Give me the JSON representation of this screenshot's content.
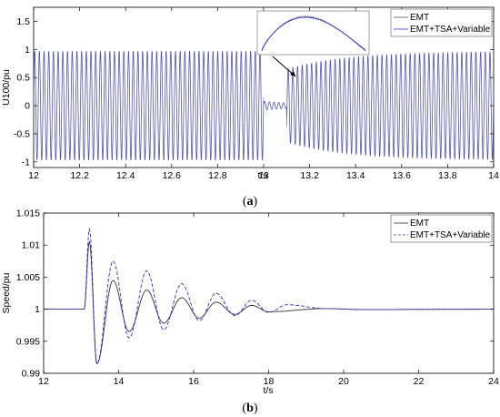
{
  "chart_data": [
    {
      "type": "line",
      "caption": "(a)",
      "xlabel": "t/s",
      "ylabel": "U100/pu",
      "xlim": [
        12,
        14
      ],
      "ylim": [
        -1.1,
        1.75
      ],
      "xticks": [
        "12",
        "12.2",
        "12.4",
        "12.6",
        "12.8",
        "13",
        "13.2",
        "13.4",
        "13.6",
        "13.8",
        "14"
      ],
      "yticks": [
        "-1",
        "-0.5",
        "0",
        "0.5",
        "1",
        "1.5"
      ],
      "legend_position": "top-right",
      "series": [
        {
          "name": "EMT",
          "color": "#555555",
          "description_values": {
            "frequency_hz": 50,
            "amplitude_pre_fault": 0.97,
            "fault_start": 13.0,
            "fault_clear": 13.1,
            "fault_amplitude": 0.08,
            "post_fault_amplitude_start": 0.65,
            "post_fault_amplitude_end": 0.97
          }
        },
        {
          "name": "EMT+TSA+Variable",
          "color": "#3333cc",
          "description_values": {
            "frequency_hz": 50,
            "amplitude_pre_fault": 0.97,
            "fault_start": 13.0,
            "fault_clear": 13.1,
            "fault_amplitude": 0.08,
            "post_fault_amplitude_start": 0.65,
            "post_fault_amplitude_end": 0.97
          }
        }
      ],
      "inset": {
        "description": "zoomed view of one waveform peak"
      }
    },
    {
      "type": "line",
      "caption": "(b)",
      "xlabel": "t/s",
      "ylabel": "Speed/pu",
      "xlim": [
        12,
        24
      ],
      "ylim": [
        0.99,
        1.015
      ],
      "xticks": [
        "12",
        "14",
        "16",
        "18",
        "20",
        "22",
        "24"
      ],
      "yticks": [
        "0.99",
        "0.995",
        "1",
        "1.005",
        "1.01",
        "1.015"
      ],
      "legend_position": "top-right",
      "series": [
        {
          "name": "EMT",
          "color": "#333333",
          "peaks": [
            [
              13.22,
              1.0105
            ],
            [
              13.42,
              0.9915
            ],
            [
              13.85,
              1.0045
            ],
            [
              14.28,
              0.9965
            ],
            [
              14.75,
              1.003
            ],
            [
              15.2,
              0.9978
            ],
            [
              15.68,
              1.0018
            ],
            [
              16.15,
              0.9986
            ],
            [
              16.6,
              1.0011
            ],
            [
              17.1,
              0.9992
            ],
            [
              17.55,
              1.0006
            ],
            [
              18.0,
              0.9996
            ]
          ]
        },
        {
          "name": "EMT+TSA+Variable",
          "color": "#3333cc",
          "peaks": [
            [
              13.22,
              1.0125
            ],
            [
              13.42,
              0.9915
            ],
            [
              13.85,
              1.0075
            ],
            [
              14.28,
              0.9955
            ],
            [
              14.75,
              1.006
            ],
            [
              15.2,
              0.9968
            ],
            [
              15.68,
              1.004
            ],
            [
              16.15,
              0.9982
            ],
            [
              16.6,
              1.0025
            ],
            [
              17.1,
              0.999
            ],
            [
              17.55,
              1.0014
            ],
            [
              18.0,
              0.9995
            ],
            [
              18.5,
              1.0007
            ]
          ]
        }
      ]
    }
  ]
}
